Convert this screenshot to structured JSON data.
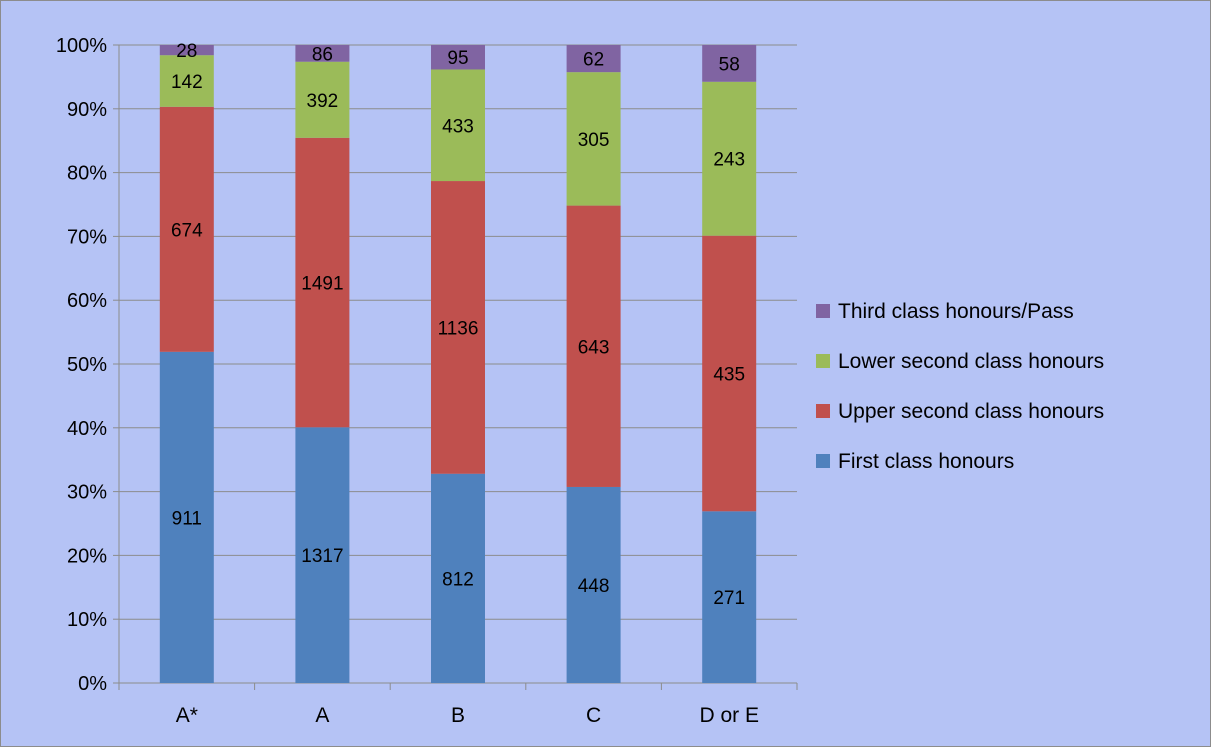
{
  "chart_data": {
    "type": "bar",
    "stacked": true,
    "normalized": true,
    "title": "",
    "xlabel": "",
    "ylabel": "",
    "categories": [
      "A*",
      "A",
      "B",
      "C",
      "D or E"
    ],
    "series": [
      {
        "name": "First class honours",
        "color": "#4f81bd",
        "values": [
          911,
          1317,
          812,
          448,
          271
        ]
      },
      {
        "name": "Upper second class honours",
        "color": "#c0504d",
        "values": [
          674,
          1491,
          1136,
          643,
          435
        ]
      },
      {
        "name": "Lower second class honours",
        "color": "#9bbb59",
        "values": [
          142,
          392,
          433,
          305,
          243
        ]
      },
      {
        "name": "Third class honours/Pass",
        "color": "#8064a2",
        "values": [
          28,
          86,
          95,
          62,
          58
        ]
      }
    ],
    "y_ticks": [
      "0%",
      "10%",
      "20%",
      "30%",
      "40%",
      "50%",
      "60%",
      "70%",
      "80%",
      "90%",
      "100%"
    ],
    "ylim": [
      0,
      100
    ],
    "grid": true,
    "legend_position": "right",
    "legend_order": [
      "Third class honours/Pass",
      "Lower second class honours",
      "Upper second class honours",
      "First class honours"
    ],
    "background_color": "#b5c3f5",
    "gridline_color": "#8c8c8c"
  }
}
